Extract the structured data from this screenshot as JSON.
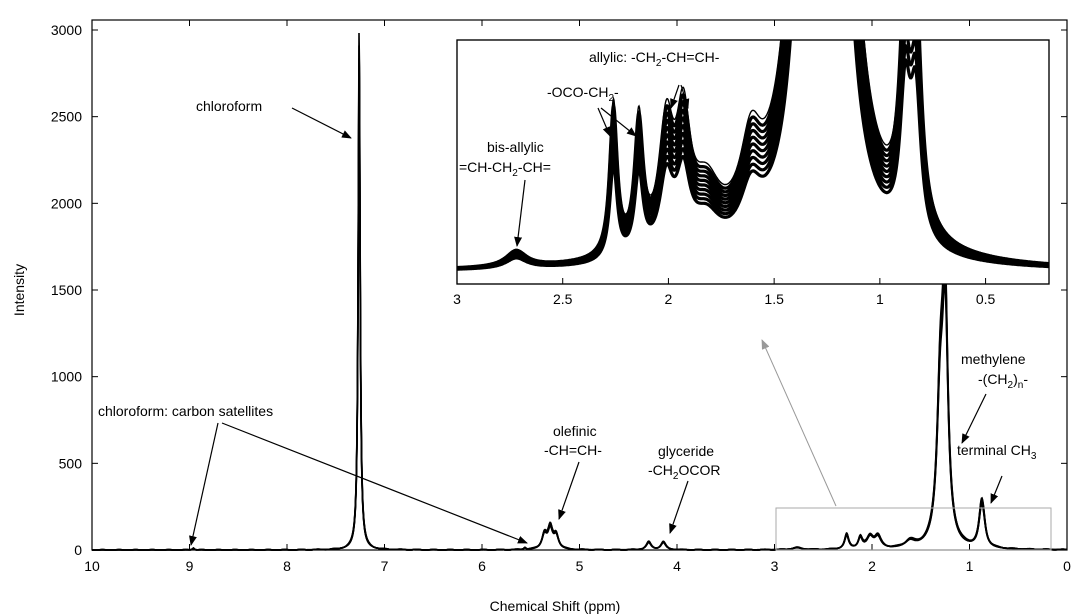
{
  "chart_data": [
    {
      "type": "line",
      "xlabel": "Chemical Shift (ppm)",
      "ylabel": "Intensity",
      "xlim": [
        10,
        0
      ],
      "ylim": [
        0,
        3000
      ],
      "x_reversed": true,
      "xticks": [
        10,
        9,
        8,
        7,
        6,
        5,
        4,
        3,
        2,
        1,
        0
      ],
      "yticks": [
        0,
        500,
        1000,
        1500,
        2000,
        2500,
        3000
      ],
      "ytick_labels": [
        "0",
        "500",
        "1000",
        "1500",
        "2000",
        "2500",
        "3000"
      ],
      "grid": false,
      "series_description_count": "many overlaid spectra",
      "peaks": [
        {
          "x": 8.96,
          "y": 12,
          "width": 0.012
        },
        {
          "x": 7.26,
          "y": 2960,
          "width": 0.012
        },
        {
          "x": 5.56,
          "y": 12,
          "width": 0.012
        },
        {
          "x": 5.36,
          "y": 85,
          "width": 0.03
        },
        {
          "x": 5.3,
          "y": 120,
          "width": 0.03
        },
        {
          "x": 5.24,
          "y": 80,
          "width": 0.03
        },
        {
          "x": 4.29,
          "y": 45,
          "width": 0.03
        },
        {
          "x": 4.14,
          "y": 45,
          "width": 0.03
        },
        {
          "x": 2.77,
          "y": 12,
          "width": 0.06
        },
        {
          "x": 2.26,
          "y": 85,
          "width": 0.025
        },
        {
          "x": 2.12,
          "y": 65,
          "width": 0.025
        },
        {
          "x": 2.02,
          "y": 70,
          "width": 0.04
        },
        {
          "x": 1.94,
          "y": 70,
          "width": 0.04
        },
        {
          "x": 1.61,
          "y": 40,
          "width": 0.06
        },
        {
          "x": 1.3,
          "y": 820,
          "width": 0.04
        },
        {
          "x": 1.25,
          "y": 1370,
          "width": 0.035
        },
        {
          "x": 0.88,
          "y": 180,
          "width": 0.03
        },
        {
          "x": 0.86,
          "y": 120,
          "width": 0.03
        }
      ],
      "annotations": [
        {
          "text": "chloroform",
          "target_x": 7.26,
          "target_y": 2550
        },
        {
          "text": "chloroform: carbon satellites",
          "target_x": 8.96,
          "target_y": 20
        },
        {
          "text": "chloroform: carbon satellites",
          "target_x": 5.56,
          "target_y": 20
        },
        {
          "text_lines": [
            "olefinic",
            "-CH=CH-"
          ],
          "target_x": 5.3,
          "target_y": 150
        },
        {
          "text_lines": [
            "glyceride",
            "-CH2OCOR"
          ],
          "target_x": 4.14,
          "target_y": 60
        },
        {
          "text_lines": [
            "methylene",
            "-(CH2)n-"
          ],
          "target_x": 1.25,
          "target_y": 780
        },
        {
          "text": "terminal CH3",
          "target_x": 0.88,
          "target_y": 240
        }
      ],
      "labels": {
        "chloroform": "chloroform",
        "satellites": "chloroform: carbon satellites",
        "olefinic_1": "olefinic",
        "olefinic_2": "-CH=CH-",
        "glyceride_1": "glyceride",
        "glyceride_2a": "-CH",
        "glyceride_2sub": "2",
        "glyceride_2b": "OCOR",
        "methylene_1": "methylene",
        "methylene_2a": "-(CH",
        "methylene_2sub": "2",
        "methylene_2b": ")",
        "methylene_2sub2": "n",
        "methylene_2c": "-",
        "terminal_a": "terminal CH",
        "terminal_sub": "3"
      },
      "zoom_region": {
        "x": [
          3,
          0.15
        ],
        "y": [
          0,
          250
        ]
      }
    },
    {
      "type": "line",
      "inset": true,
      "xlim": [
        3,
        0.2
      ],
      "x_reversed": true,
      "xticks": [
        3,
        2.5,
        2,
        1.5,
        1,
        0.5
      ],
      "xtick_labels": [
        "3",
        "2.5",
        "2",
        "1.5",
        "1",
        "0.5"
      ],
      "grid": false,
      "labels": {
        "allylic_a": "allylic: -CH",
        "allylic_sub": "2",
        "allylic_b": "-CH=CH-",
        "oco_a": "-OCO-CH",
        "oco_sub": "2",
        "oco_b": "-",
        "bis_1": "bis-allylic",
        "bis_2a": "=CH-CH",
        "bis_2sub": "2",
        "bis_2b": "-CH="
      }
    }
  ]
}
